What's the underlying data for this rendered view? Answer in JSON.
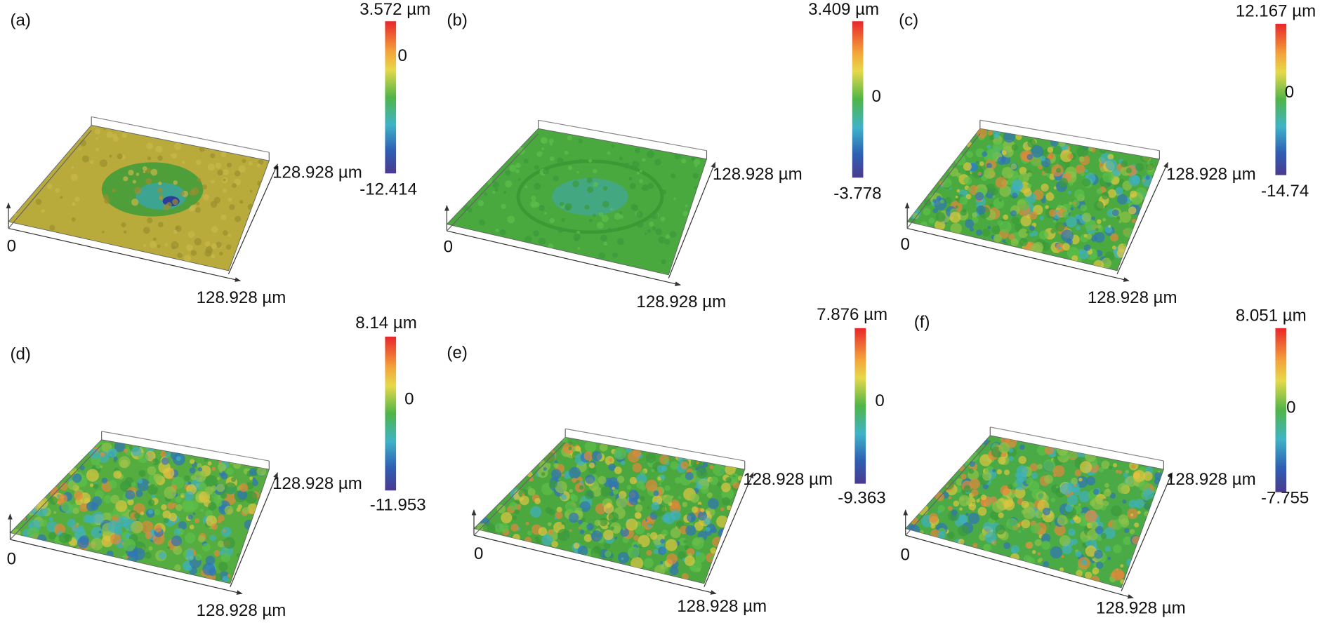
{
  "panels": [
    {
      "label": "(a)",
      "colorbar": {
        "max": "3.572 µm",
        "zero": "0",
        "min": "-12.414"
      },
      "axes": {
        "origin": "0",
        "x": "128.928 µm",
        "y": "128.928 µm"
      }
    },
    {
      "label": "(b)",
      "colorbar": {
        "max": "3.409 µm",
        "zero": "0",
        "min": "-3.778"
      },
      "axes": {
        "origin": "0",
        "x": "128.928 µm",
        "y": "128.928 µm"
      }
    },
    {
      "label": "(c)",
      "colorbar": {
        "max": "12.167 µm",
        "zero": "0",
        "min": "-14.74"
      },
      "axes": {
        "origin": "0",
        "x": "128.928 µm",
        "y": "128.928 µm"
      }
    },
    {
      "label": "(d)",
      "colorbar": {
        "max": "8.14 µm",
        "zero": "0",
        "min": "-11.953"
      },
      "axes": {
        "origin": "0",
        "x": "128.928 µm",
        "y": "128.928 µm"
      }
    },
    {
      "label": "(e)",
      "colorbar": {
        "max": "7.876 µm",
        "zero": "0",
        "min": "-9.363"
      },
      "axes": {
        "origin": "0",
        "x": "128.928 µm",
        "y": "128.928 µm"
      }
    },
    {
      "label": "(f)",
      "colorbar": {
        "max": "8.051 µm",
        "zero": "0",
        "min": "-7.755"
      },
      "axes": {
        "origin": "0",
        "x": "128.928 µm",
        "y": "128.928 µm"
      }
    }
  ]
}
